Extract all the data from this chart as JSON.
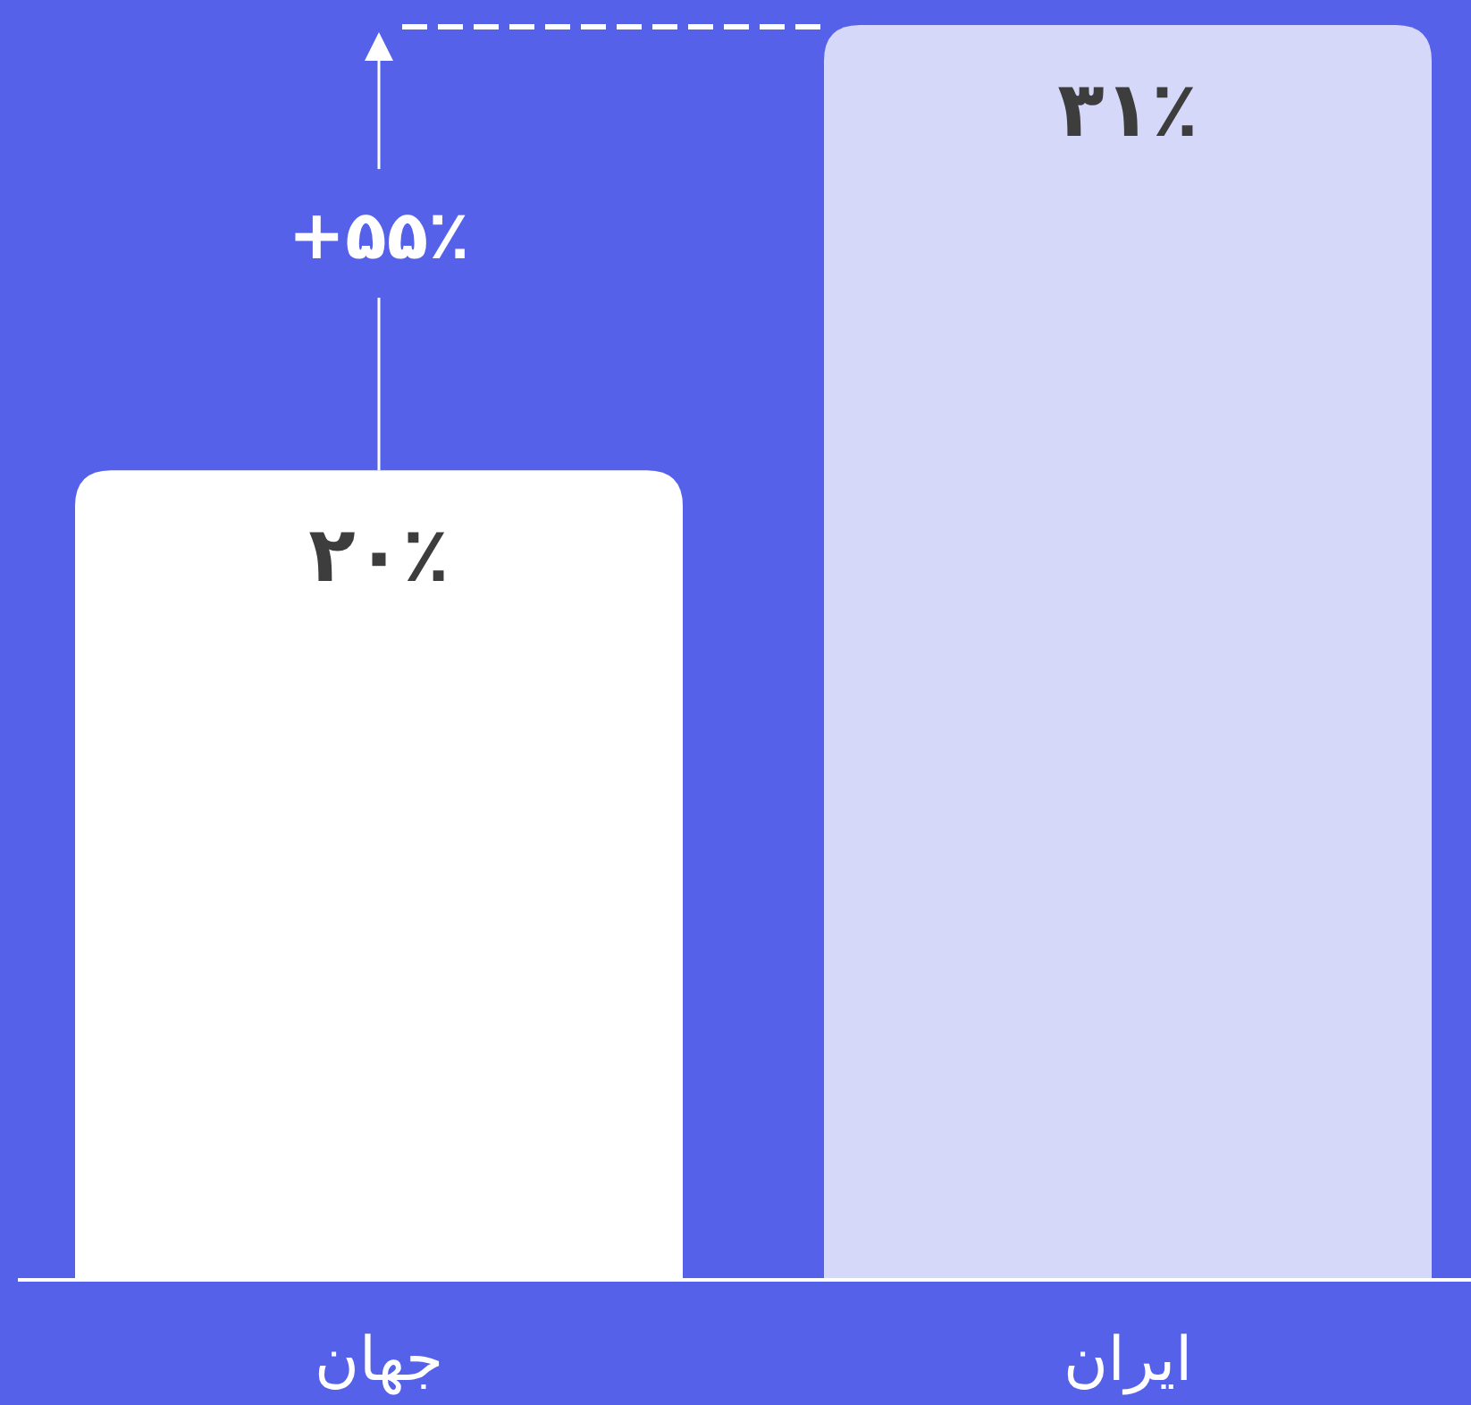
{
  "chart_data": {
    "type": "bar",
    "categories": [
      "جهان",
      "ایران"
    ],
    "values": [
      20,
      31
    ],
    "colors": [
      "#ffffff",
      "#d6d8f9"
    ],
    "value_labels": [
      "۲۰٪",
      "۳۱٪"
    ],
    "annotations": [
      "+۵۵٪"
    ]
  }
}
